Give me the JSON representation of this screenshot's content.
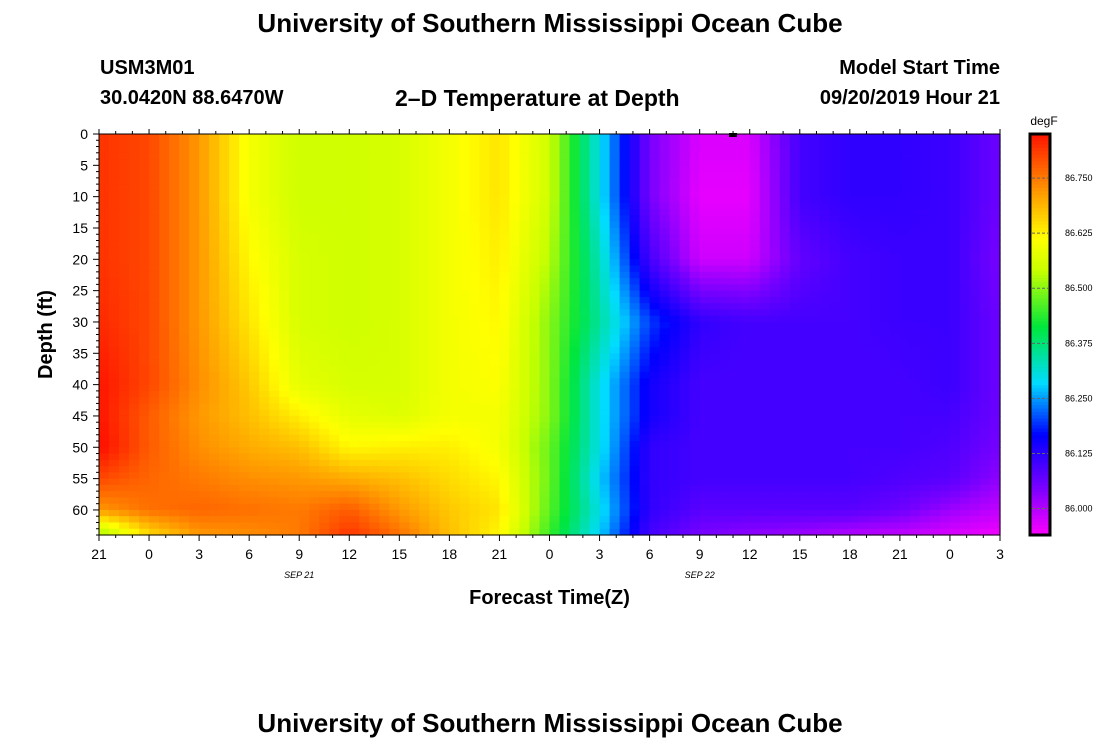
{
  "header": {
    "title": "University of Southern Mississippi Ocean Cube",
    "station_id": "USM3M01",
    "coordinates": "30.0420N 88.6470W",
    "plot_name": "2–D Temperature at Depth",
    "model_start_label": "Model Start Time",
    "model_start_value": "09/20/2019 Hour 21"
  },
  "footer": {
    "title": "University of Southern Mississippi Ocean Cube"
  },
  "chart_data": {
    "type": "heatmap",
    "title": "2–D Temperature at Depth",
    "xlabel": "Forecast Time(Z)",
    "ylabel": "Depth (ft)",
    "x_tick_labels": [
      "21",
      "0",
      "3",
      "6",
      "9",
      "12",
      "15",
      "18",
      "21",
      "0",
      "3",
      "6",
      "9",
      "12",
      "15",
      "18",
      "21",
      "0",
      "3"
    ],
    "x_date_labels": [
      {
        "label": "SEP 21",
        "at_tick": 4
      },
      {
        "label": "SEP 22",
        "at_tick": 12
      }
    ],
    "x_range_hours": [
      0,
      54
    ],
    "y_ticks": [
      0,
      5,
      10,
      15,
      20,
      25,
      30,
      35,
      40,
      45,
      50,
      55,
      60
    ],
    "ylim": [
      0,
      64
    ],
    "colorbar": {
      "unit": "degF",
      "tick_labels": [
        "86.750",
        "86.625",
        "86.500",
        "86.375",
        "86.250",
        "86.125",
        "86.000"
      ],
      "tick_values": [
        86.75,
        86.625,
        86.5,
        86.375,
        86.25,
        86.125,
        86.0
      ],
      "range": [
        85.94,
        86.85
      ]
    },
    "marker": {
      "hour": 38,
      "depth": 0
    },
    "x_hours": [
      0,
      3,
      6,
      9,
      12,
      15,
      18,
      21,
      24,
      27,
      30,
      33,
      36,
      39,
      42,
      45,
      48,
      51,
      54
    ],
    "depths": [
      0,
      10,
      20,
      30,
      40,
      45,
      50,
      55,
      60,
      64
    ],
    "values": [
      [
        86.82,
        86.8,
        86.72,
        86.6,
        86.55,
        86.55,
        86.56,
        86.6,
        86.64,
        86.55,
        86.3,
        86.05,
        85.97,
        85.97,
        86.1,
        86.12,
        86.12,
        86.11,
        86.06
      ],
      [
        86.82,
        86.8,
        86.72,
        86.6,
        86.55,
        86.55,
        86.56,
        86.6,
        86.64,
        86.55,
        86.3,
        86.05,
        85.96,
        85.96,
        86.1,
        86.12,
        86.12,
        86.11,
        86.06
      ],
      [
        86.82,
        86.8,
        86.72,
        86.62,
        86.56,
        86.55,
        86.56,
        86.6,
        86.63,
        86.53,
        86.33,
        86.1,
        85.98,
        85.98,
        86.07,
        86.1,
        86.11,
        86.11,
        86.05
      ],
      [
        86.83,
        86.8,
        86.72,
        86.64,
        86.56,
        86.55,
        86.56,
        86.6,
        86.62,
        86.5,
        86.35,
        86.2,
        86.12,
        86.1,
        86.1,
        86.1,
        86.11,
        86.11,
        86.06
      ],
      [
        86.85,
        86.8,
        86.73,
        86.67,
        86.58,
        86.56,
        86.56,
        86.6,
        86.61,
        86.5,
        86.3,
        86.15,
        86.1,
        86.1,
        86.1,
        86.1,
        86.1,
        86.11,
        86.06
      ],
      [
        86.85,
        86.78,
        86.72,
        86.68,
        86.63,
        86.58,
        86.57,
        86.6,
        86.6,
        86.5,
        86.3,
        86.15,
        86.1,
        86.1,
        86.1,
        86.1,
        86.1,
        86.1,
        86.06
      ],
      [
        86.86,
        86.78,
        86.73,
        86.7,
        86.68,
        86.62,
        86.63,
        86.63,
        86.6,
        86.48,
        86.3,
        86.12,
        86.1,
        86.1,
        86.1,
        86.1,
        86.1,
        86.09,
        86.05
      ],
      [
        86.8,
        86.77,
        86.75,
        86.73,
        86.72,
        86.7,
        86.68,
        86.65,
        86.62,
        86.48,
        86.28,
        86.12,
        86.1,
        86.1,
        86.1,
        86.1,
        86.09,
        86.08,
        86.03
      ],
      [
        86.72,
        86.76,
        86.77,
        86.76,
        86.75,
        86.78,
        86.72,
        86.67,
        86.64,
        86.47,
        86.3,
        86.12,
        86.08,
        86.08,
        86.08,
        86.08,
        86.06,
        86.02,
        85.99
      ],
      [
        86.5,
        86.65,
        86.72,
        86.73,
        86.75,
        86.82,
        86.76,
        86.68,
        86.62,
        86.45,
        86.28,
        86.1,
        86.05,
        86.03,
        86.02,
        86.0,
        85.99,
        85.97,
        85.95
      ]
    ]
  }
}
